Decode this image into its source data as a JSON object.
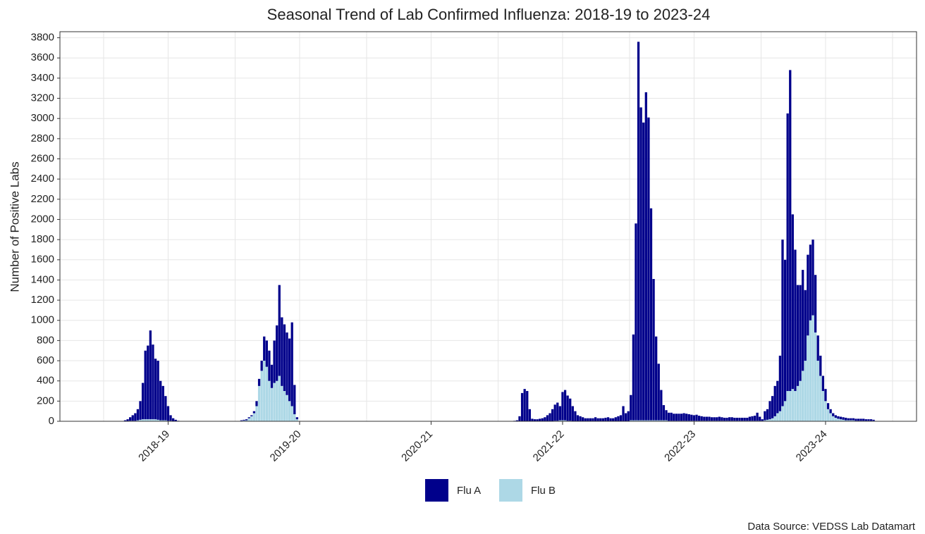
{
  "chart_data": {
    "type": "stacked_bar",
    "title": "Seasonal Trend of Lab Confirmed Influenza: 2018-19 to 2023-24",
    "y_label": "Number of Positive Labs",
    "source": "Data Source: VEDSS Lab Datamart",
    "categories": [
      null,
      null,
      null,
      null,
      null,
      null,
      null,
      null,
      null,
      null,
      null,
      null,
      null,
      null,
      null,
      null,
      null,
      null,
      null,
      null,
      null,
      null,
      null,
      null,
      null,
      "2018-19",
      null,
      null,
      null,
      null,
      null,
      null,
      null,
      null,
      null,
      null,
      null,
      null,
      null,
      null,
      null,
      null,
      null,
      null,
      null,
      null,
      null,
      null,
      null,
      null,
      null,
      null,
      null,
      null,
      null,
      null,
      null,
      null,
      null,
      null,
      null,
      null,
      null,
      null,
      null,
      null,
      null,
      null,
      null,
      null,
      null,
      null,
      null,
      null,
      null,
      null,
      null,
      "2019-20",
      null,
      null,
      null,
      null,
      null,
      null,
      null,
      null,
      null,
      null,
      null,
      null,
      null,
      null,
      null,
      null,
      null,
      null,
      null,
      null,
      null,
      null,
      null,
      null,
      null,
      null,
      null,
      null,
      null,
      null,
      null,
      null,
      null,
      null,
      null,
      null,
      null,
      null,
      null,
      null,
      null,
      null,
      null,
      null,
      null,
      null,
      null,
      null,
      null,
      null,
      null,
      "2020-21",
      null,
      null,
      null,
      null,
      null,
      null,
      null,
      null,
      null,
      null,
      null,
      null,
      null,
      null,
      null,
      null,
      null,
      null,
      null,
      null,
      null,
      null,
      null,
      null,
      null,
      null,
      null,
      null,
      null,
      null,
      null,
      null,
      null,
      null,
      null,
      null,
      null,
      null,
      null,
      null,
      null,
      null,
      null,
      null,
      null,
      null,
      null,
      null,
      null,
      null,
      null,
      "2021-22",
      null,
      null,
      null,
      null,
      null,
      null,
      null,
      null,
      null,
      null,
      null,
      null,
      null,
      null,
      null,
      null,
      null,
      null,
      null,
      null,
      null,
      null,
      null,
      null,
      null,
      null,
      null,
      null,
      null,
      null,
      null,
      null,
      null,
      null,
      null,
      null,
      null,
      null,
      null,
      null,
      null,
      null,
      null,
      null,
      null,
      null,
      null,
      null,
      null,
      null,
      null,
      "2022-23",
      null,
      null,
      null,
      null,
      null,
      null,
      null,
      null,
      null,
      null,
      null,
      null,
      null,
      null,
      null,
      null,
      null,
      null,
      null,
      null,
      null,
      null,
      null,
      null,
      null,
      null,
      null,
      null,
      null,
      null,
      null,
      null,
      null,
      null,
      null,
      null,
      null,
      null,
      null,
      null,
      null,
      null,
      null,
      null,
      null,
      null,
      null,
      null,
      null,
      null,
      null,
      "2023-24",
      null,
      null,
      null,
      null,
      null,
      null,
      null,
      null,
      null,
      null,
      null,
      null,
      null,
      null,
      null,
      null,
      null,
      null,
      null,
      null,
      null,
      null,
      null,
      null,
      null,
      null
    ],
    "series": [
      {
        "name": "Flu B",
        "color": "#add8e6",
        "values": [
          0,
          0,
          0,
          0,
          0,
          0,
          0,
          0,
          0,
          2,
          5,
          5,
          5,
          10,
          15,
          20,
          20,
          20,
          20,
          20,
          20,
          15,
          10,
          10,
          10,
          5,
          5,
          2,
          3,
          0,
          0,
          0,
          0,
          0,
          0,
          0,
          0,
          0,
          0,
          0,
          0,
          0,
          0,
          0,
          0,
          0,
          0,
          0,
          0,
          0,
          0,
          0,
          0,
          0,
          5,
          8,
          10,
          30,
          50,
          80,
          150,
          350,
          500,
          600,
          540,
          400,
          330,
          380,
          400,
          450,
          350,
          300,
          260,
          200,
          150,
          70,
          20,
          0,
          0,
          0,
          0,
          0,
          0,
          0,
          0,
          0,
          0,
          0,
          0,
          0,
          0,
          0,
          0,
          0,
          0,
          0,
          0,
          0,
          0,
          0,
          0,
          0,
          0,
          0,
          0,
          0,
          0,
          0,
          0,
          0,
          0,
          0,
          0,
          0,
          0,
          0,
          0,
          0,
          0,
          0,
          0,
          0,
          0,
          0,
          0,
          0,
          0,
          0,
          0,
          0,
          0,
          0,
          0,
          0,
          0,
          0,
          0,
          0,
          0,
          0,
          0,
          0,
          0,
          0,
          0,
          0,
          0,
          0,
          0,
          0,
          0,
          0,
          0,
          0,
          0,
          0,
          0,
          0,
          0,
          0,
          0,
          0,
          0,
          0,
          0,
          0,
          0,
          0,
          0,
          0,
          0,
          0,
          0,
          0,
          0,
          0,
          0,
          0,
          5,
          5,
          10,
          10,
          10,
          5,
          5,
          0,
          0,
          0,
          0,
          0,
          0,
          0,
          0,
          0,
          0,
          0,
          0,
          0,
          0,
          0,
          0,
          0,
          0,
          0,
          0,
          0,
          0,
          0,
          10,
          10,
          10,
          10,
          10,
          10,
          10,
          10,
          10,
          10,
          10,
          10,
          10,
          10,
          10,
          5,
          5,
          5,
          5,
          5,
          5,
          5,
          5,
          5,
          5,
          5,
          5,
          5,
          5,
          5,
          5,
          5,
          5,
          5,
          5,
          5,
          5,
          5,
          5,
          5,
          5,
          5,
          5,
          5,
          5,
          5,
          5,
          5,
          5,
          5,
          5,
          5,
          5,
          10,
          15,
          20,
          30,
          50,
          80,
          100,
          150,
          200,
          300,
          300,
          320,
          300,
          350,
          400,
          500,
          600,
          850,
          1000,
          1050,
          880,
          600,
          450,
          300,
          200,
          120,
          80,
          50,
          35,
          25,
          20,
          15,
          10,
          10,
          10,
          10,
          5,
          5,
          5,
          5,
          5,
          5,
          5,
          5,
          0,
          0,
          0,
          0,
          0,
          0,
          0
        ]
      },
      {
        "name": "Flu A",
        "color": "#00008b",
        "values": [
          0,
          0,
          0,
          0,
          0,
          0,
          0,
          0,
          10,
          18,
          35,
          55,
          75,
          110,
          185,
          360,
          680,
          730,
          880,
          740,
          600,
          585,
          390,
          340,
          240,
          145,
          55,
          28,
          12,
          5,
          0,
          0,
          0,
          0,
          0,
          0,
          0,
          0,
          0,
          0,
          0,
          0,
          0,
          0,
          0,
          0,
          0,
          0,
          0,
          0,
          0,
          0,
          0,
          0,
          5,
          7,
          10,
          10,
          10,
          20,
          50,
          70,
          100,
          240,
          260,
          300,
          230,
          420,
          550,
          900,
          680,
          660,
          620,
          620,
          830,
          290,
          20,
          0,
          0,
          0,
          0,
          0,
          0,
          0,
          0,
          0,
          0,
          0,
          0,
          0,
          0,
          0,
          0,
          0,
          0,
          0,
          0,
          0,
          0,
          0,
          0,
          0,
          0,
          0,
          0,
          0,
          0,
          0,
          0,
          0,
          0,
          0,
          0,
          0,
          0,
          0,
          0,
          0,
          0,
          0,
          0,
          0,
          0,
          0,
          0,
          0,
          0,
          0,
          0,
          0,
          0,
          0,
          0,
          0,
          0,
          0,
          0,
          0,
          0,
          0,
          0,
          0,
          0,
          0,
          0,
          0,
          0,
          0,
          0,
          0,
          0,
          0,
          0,
          0,
          0,
          0,
          0,
          0,
          0,
          0,
          0,
          0,
          5,
          10,
          50,
          280,
          320,
          300,
          120,
          25,
          20,
          20,
          25,
          30,
          40,
          60,
          80,
          120,
          160,
          180,
          140,
          280,
          300,
          250,
          220,
          150,
          100,
          60,
          50,
          40,
          30,
          30,
          30,
          30,
          40,
          30,
          30,
          30,
          35,
          40,
          30,
          30,
          40,
          50,
          60,
          150,
          80,
          100,
          250,
          850,
          1950,
          3750,
          3100,
          2950,
          3250,
          3000,
          2100,
          1400,
          830,
          560,
          300,
          150,
          100,
          80,
          80,
          70,
          70,
          70,
          70,
          75,
          70,
          65,
          60,
          55,
          60,
          50,
          45,
          40,
          40,
          40,
          35,
          35,
          35,
          40,
          35,
          30,
          30,
          35,
          35,
          30,
          30,
          30,
          30,
          30,
          30,
          40,
          45,
          50,
          80,
          40,
          15,
          90,
          105,
          180,
          220,
          300,
          320,
          550,
          1650,
          1400,
          2750,
          3180,
          1730,
          1400,
          1000,
          950,
          1000,
          700,
          800,
          750,
          750,
          570,
          250,
          200,
          150,
          120,
          60,
          40,
          30,
          25,
          25,
          25,
          25,
          25,
          20,
          20,
          20,
          20,
          20,
          20,
          20,
          15,
          15,
          15,
          10,
          0,
          0,
          0,
          0,
          0,
          0,
          0
        ]
      }
    ],
    "ylim": [
      0,
      3860
    ],
    "yticks": [
      0,
      200,
      400,
      600,
      800,
      1000,
      1200,
      1400,
      1600,
      1800,
      2000,
      2200,
      2400,
      2600,
      2800,
      3000,
      3200,
      3400,
      3600,
      3800
    ],
    "grid": true
  }
}
